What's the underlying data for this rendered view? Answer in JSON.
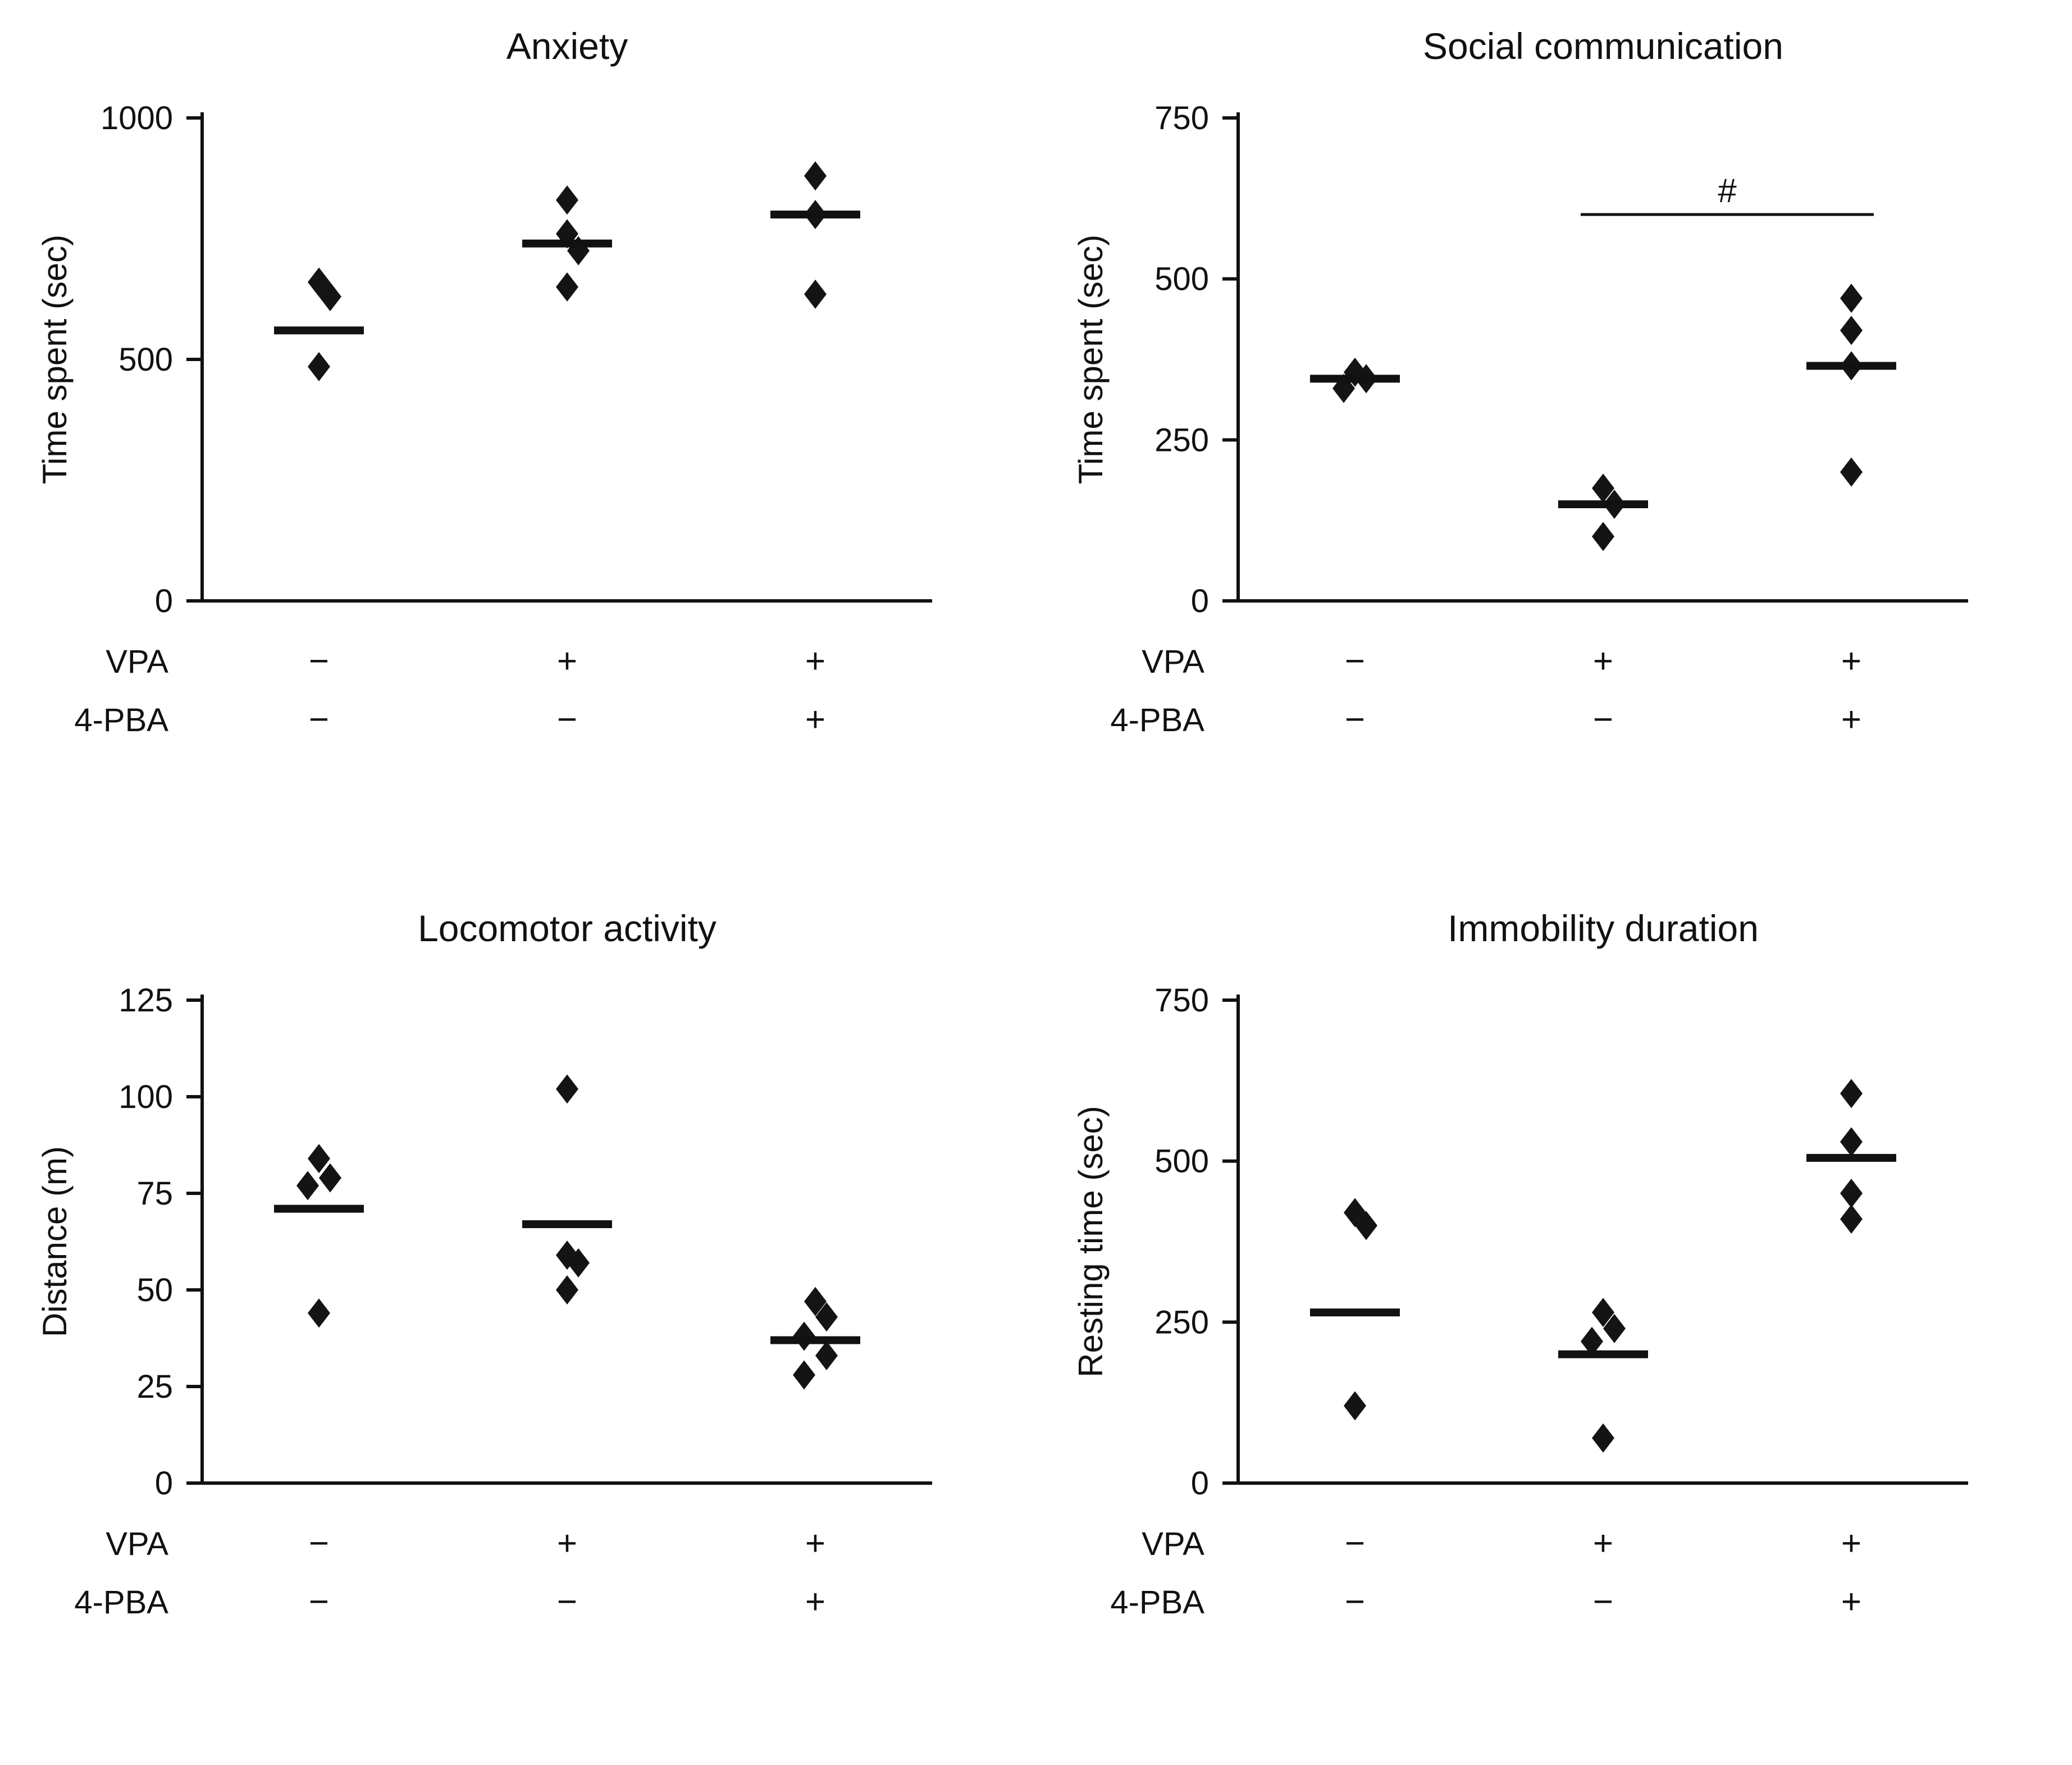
{
  "style": {
    "background": "#ffffff",
    "ink": "#111111",
    "marker_color": "#141414",
    "marker_shape": "diamond"
  },
  "chart_data": [
    {
      "type": "scatter",
      "title": "Anxiety",
      "ylabel": "Time spent (sec)",
      "ylim": [
        0,
        1000
      ],
      "yticks": [
        0,
        500,
        1000
      ],
      "row_labels": [
        "VPA",
        "4-PBA"
      ],
      "groups": [
        {
          "symbols": [
            "−",
            "−"
          ],
          "points": [
            485,
            630,
            660
          ],
          "median": 560
        },
        {
          "symbols": [
            "+",
            "−"
          ],
          "points": [
            650,
            725,
            760,
            830
          ],
          "median": 740
        },
        {
          "symbols": [
            "+",
            "+"
          ],
          "points": [
            635,
            800,
            880
          ],
          "median": 800
        }
      ],
      "annotation": null
    },
    {
      "type": "scatter",
      "title": "Social communication",
      "ylabel": "Time spent (sec)",
      "ylim": [
        0,
        750
      ],
      "yticks": [
        0,
        250,
        500,
        750
      ],
      "row_labels": [
        "VPA",
        "4-PBA"
      ],
      "groups": [
        {
          "symbols": [
            "−",
            "−"
          ],
          "points": [
            330,
            345,
            355
          ],
          "median": 345
        },
        {
          "symbols": [
            "+",
            "−"
          ],
          "points": [
            100,
            150,
            175
          ],
          "median": 150
        },
        {
          "symbols": [
            "+",
            "+"
          ],
          "points": [
            200,
            365,
            420,
            470
          ],
          "median": 365
        }
      ],
      "annotation": {
        "symbol": "#",
        "between_groups": [
          1,
          2
        ],
        "y": 600
      }
    },
    {
      "type": "scatter",
      "title": "Locomotor activity",
      "ylabel": "Distance (m)",
      "ylim": [
        0,
        125
      ],
      "yticks": [
        0,
        25,
        50,
        75,
        100,
        125
      ],
      "row_labels": [
        "VPA",
        "4-PBA"
      ],
      "groups": [
        {
          "symbols": [
            "−",
            "−"
          ],
          "points": [
            44,
            77,
            79,
            84
          ],
          "median": 71
        },
        {
          "symbols": [
            "+",
            "−"
          ],
          "points": [
            50,
            57,
            59,
            102
          ],
          "median": 67
        },
        {
          "symbols": [
            "+",
            "+"
          ],
          "points": [
            28,
            33,
            38,
            43,
            47
          ],
          "median": 37
        }
      ],
      "annotation": null
    },
    {
      "type": "scatter",
      "title": "Immobility duration",
      "ylabel": "Resting time (sec)",
      "ylim": [
        0,
        750
      ],
      "yticks": [
        0,
        250,
        500,
        750
      ],
      "row_labels": [
        "VPA",
        "4-PBA"
      ],
      "groups": [
        {
          "symbols": [
            "−",
            "−"
          ],
          "points": [
            120,
            400,
            420
          ],
          "median": 265
        },
        {
          "symbols": [
            "+",
            "−"
          ],
          "points": [
            70,
            220,
            240,
            265
          ],
          "median": 200
        },
        {
          "symbols": [
            "+",
            "+"
          ],
          "points": [
            410,
            450,
            530,
            605
          ],
          "median": 505
        }
      ],
      "annotation": null
    }
  ]
}
